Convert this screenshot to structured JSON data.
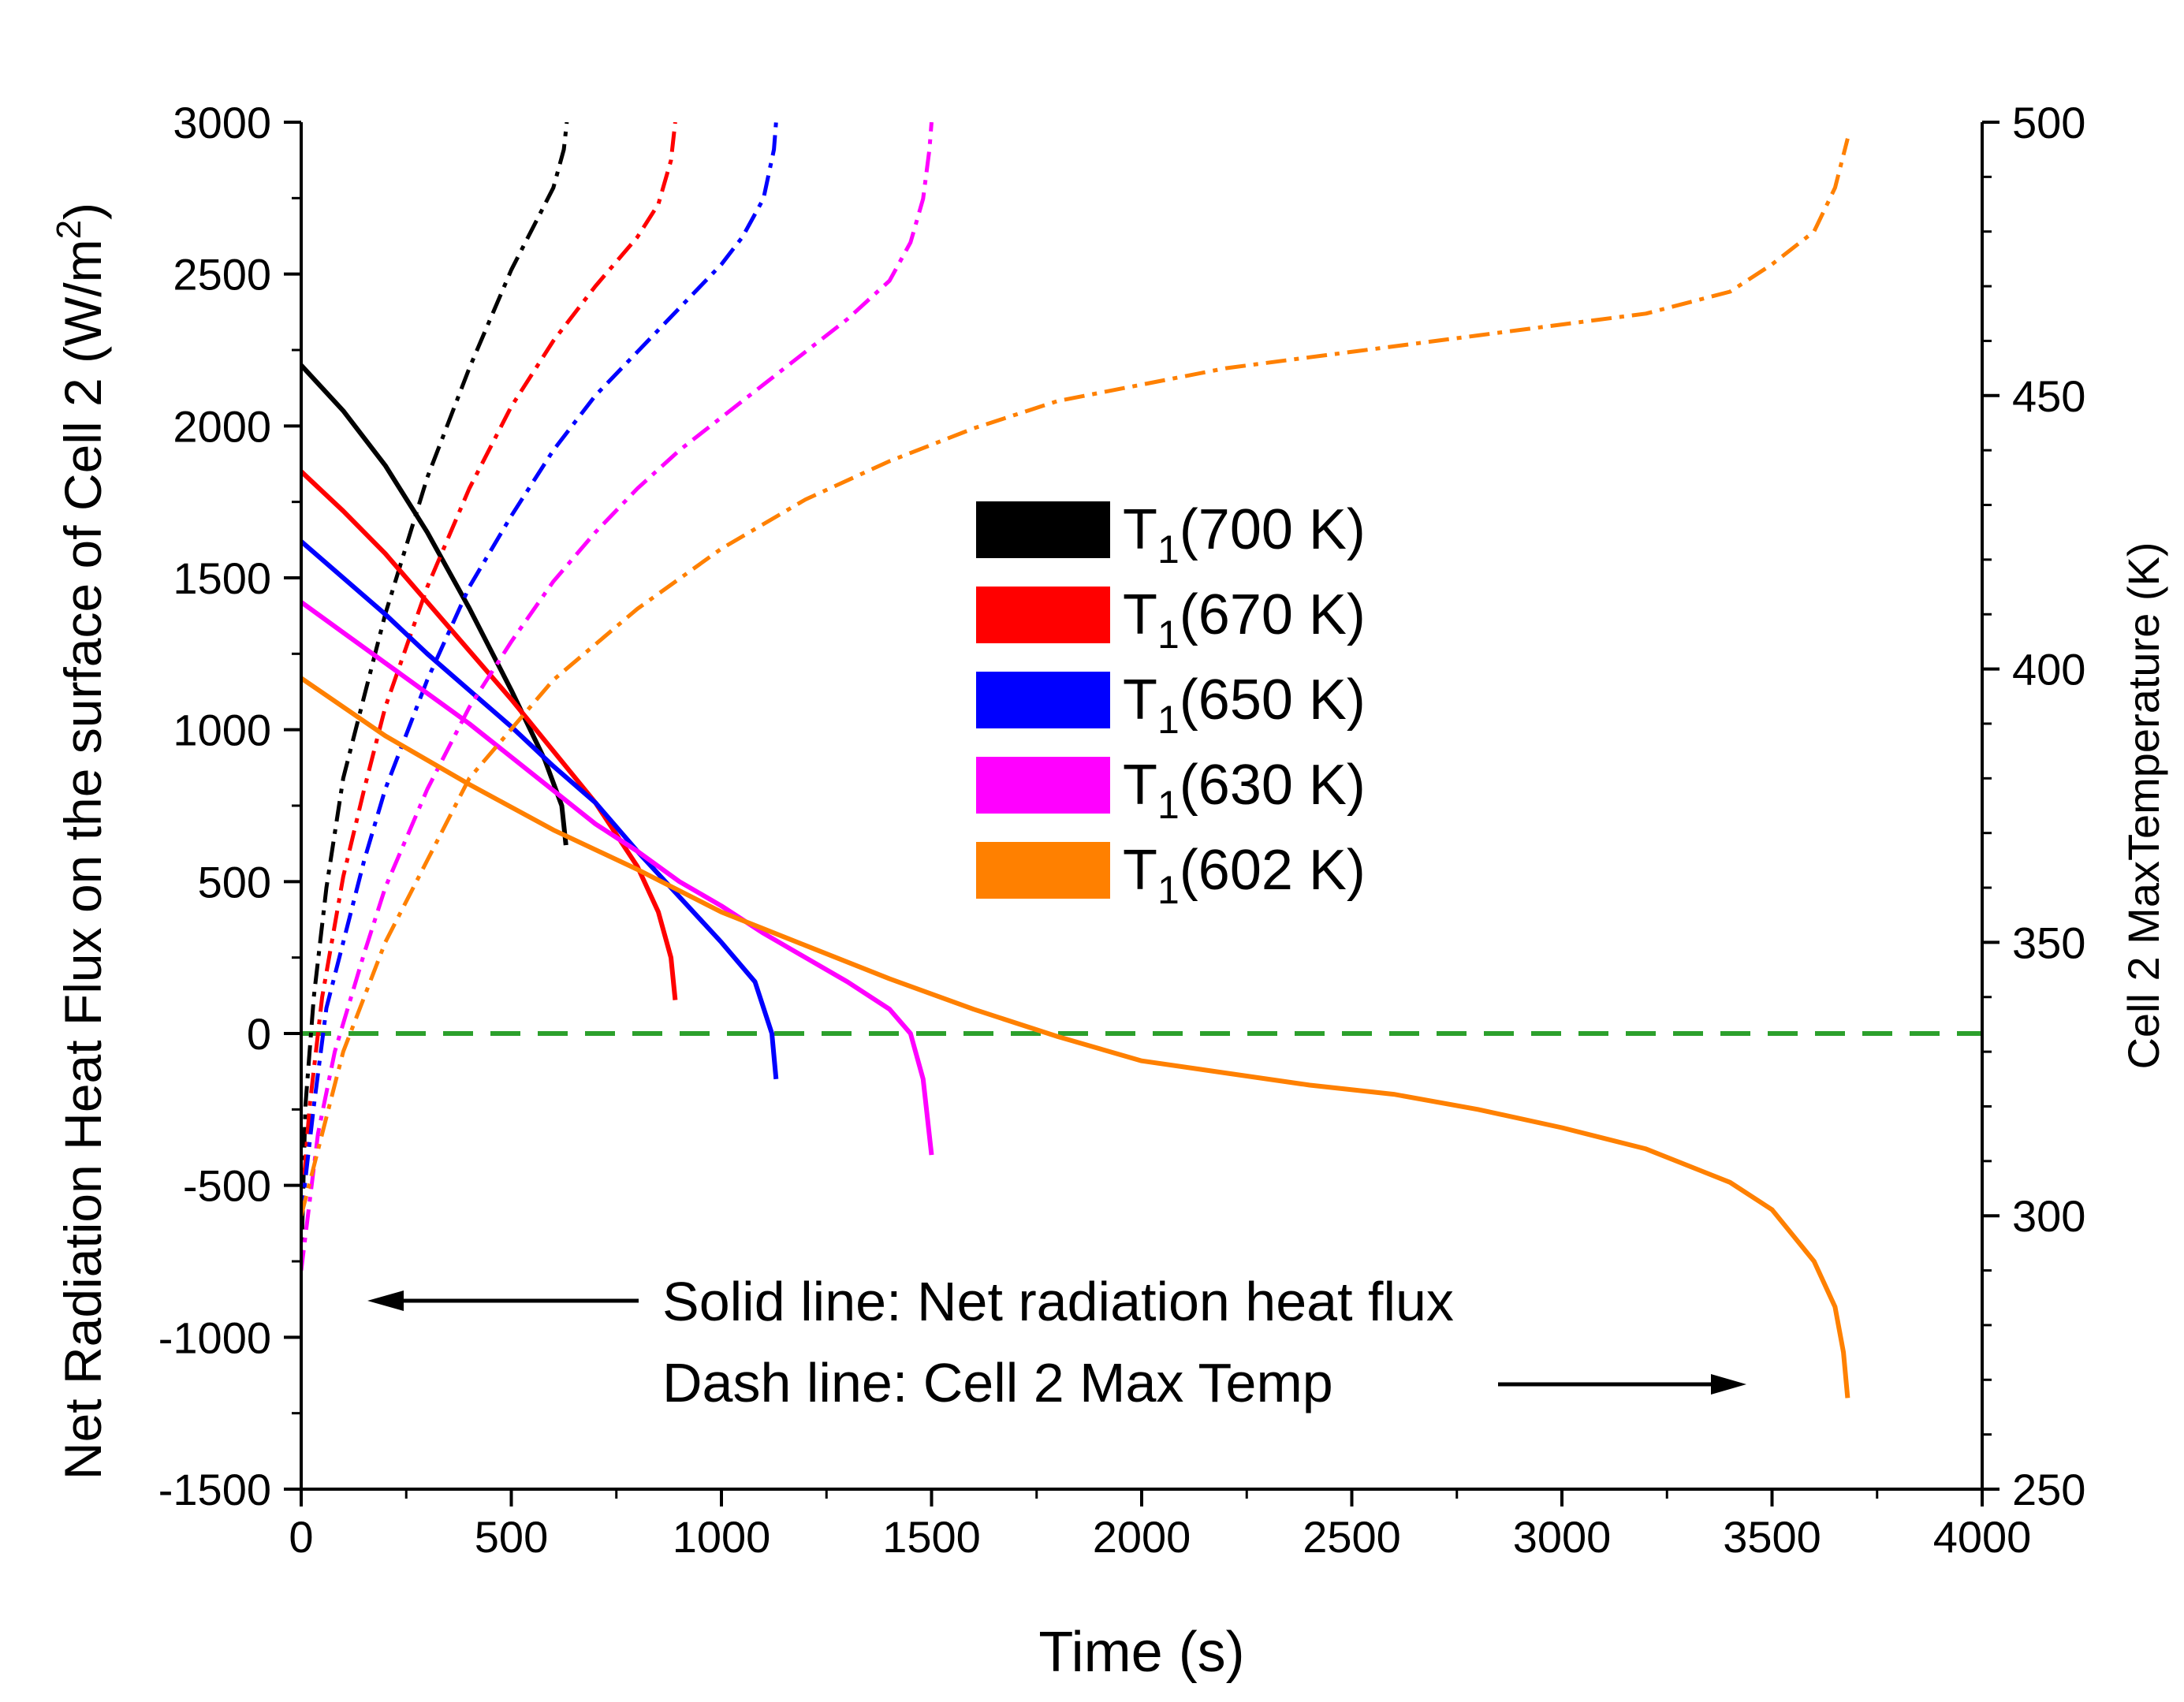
{
  "chart_data": {
    "type": "line",
    "xlabel": "Time (s)",
    "ylabel_left": "Net Radiation Heat Flux on the surface of Cell 2 (W/m²)",
    "ylabel_left_parts": {
      "main": "Net Radiation Heat Flux on the surface of Cell 2 (W/m",
      "sup": "2",
      "end": ")"
    },
    "ylabel_right": "Cell 2 MaxTemperature (K)",
    "xlim": [
      0,
      4000
    ],
    "ylim_left": [
      -1500,
      3000
    ],
    "ylim_right": [
      250,
      500
    ],
    "xticks": [
      "0",
      "500",
      "1000",
      "1500",
      "2000",
      "2500",
      "3000",
      "3500",
      "4000"
    ],
    "yticks_left": [
      "-1500",
      "-1000",
      "-500",
      "0",
      "500",
      "1000",
      "1500",
      "2000",
      "2500",
      "3000"
    ],
    "yticks_right": [
      "250",
      "300",
      "350",
      "400",
      "450",
      "500"
    ],
    "reference_line": {
      "axis": "left",
      "y": 0,
      "color": "#2ca02c",
      "style": "dashed"
    },
    "legend": {
      "placement": "center",
      "entries": [
        {
          "prefix": "T",
          "sub": "1",
          "label": "(700 K)",
          "color": "#000000"
        },
        {
          "prefix": "T",
          "sub": "1",
          "label": "(670 K)",
          "color": "#ff0000"
        },
        {
          "prefix": "T",
          "sub": "1",
          "label": "(650 K)",
          "color": "#0000ff"
        },
        {
          "prefix": "T",
          "sub": "1",
          "label": "(630 K)",
          "color": "#ff00ff"
        },
        {
          "prefix": "T",
          "sub": "1",
          "label": "(602 K)",
          "color": "#ff8000"
        }
      ]
    },
    "annotations": {
      "solid": "Solid line: Net radiation heat flux",
      "dash": "Dash line: Cell 2 Max Temp"
    },
    "series": [
      {
        "name": "T1(700 K)",
        "color": "#000000",
        "heat_flux": {
          "x": [
            0,
            100,
            200,
            300,
            400,
            500,
            580,
            620,
            630
          ],
          "y": [
            2200,
            2050,
            1870,
            1650,
            1400,
            1130,
            900,
            750,
            620
          ]
        },
        "max_temp": {
          "x": [
            0,
            10,
            30,
            60,
            100,
            150,
            200,
            300,
            400,
            500,
            600,
            625,
            632
          ],
          "y": [
            290,
            320,
            340,
            360,
            380,
            395,
            410,
            435,
            455,
            473,
            488,
            495,
            500
          ]
        }
      },
      {
        "name": "T1(670 K)",
        "color": "#ff0000",
        "heat_flux": {
          "x": [
            0,
            100,
            200,
            300,
            400,
            500,
            600,
            700,
            800,
            850,
            880,
            890
          ],
          "y": [
            1850,
            1720,
            1580,
            1420,
            1260,
            1100,
            930,
            760,
            550,
            400,
            250,
            110
          ]
        },
        "max_temp": {
          "x": [
            0,
            20,
            50,
            100,
            150,
            200,
            300,
            400,
            500,
            600,
            700,
            800,
            850,
            880,
            890
          ],
          "y": [
            300,
            320,
            340,
            362,
            378,
            393,
            415,
            433,
            448,
            460,
            470,
            479,
            485,
            493,
            500
          ]
        }
      },
      {
        "name": "T1(650 K)",
        "color": "#0000ff",
        "heat_flux": {
          "x": [
            0,
            100,
            200,
            300,
            400,
            500,
            600,
            700,
            800,
            900,
            1000,
            1080,
            1120,
            1130
          ],
          "y": [
            1620,
            1500,
            1380,
            1250,
            1130,
            1010,
            880,
            760,
            600,
            450,
            300,
            170,
            0,
            -150
          ]
        },
        "max_temp": {
          "x": [
            0,
            30,
            60,
            100,
            150,
            200,
            300,
            400,
            500,
            600,
            700,
            800,
            900,
            1000,
            1050,
            1100,
            1125,
            1130
          ],
          "y": [
            300,
            320,
            338,
            350,
            365,
            378,
            398,
            415,
            428,
            440,
            450,
            458,
            466,
            474,
            479,
            486,
            495,
            500
          ]
        }
      },
      {
        "name": "T1(630 K)",
        "color": "#ff00ff",
        "heat_flux": {
          "x": [
            0,
            100,
            200,
            300,
            400,
            500,
            600,
            700,
            800,
            900,
            1000,
            1100,
            1200,
            1300,
            1400,
            1450,
            1480,
            1500
          ],
          "y": [
            1420,
            1320,
            1220,
            1120,
            1020,
            910,
            800,
            690,
            600,
            500,
            420,
            330,
            250,
            170,
            80,
            0,
            -150,
            -400
          ]
        },
        "max_temp": {
          "x": [
            0,
            40,
            80,
            150,
            200,
            300,
            400,
            500,
            600,
            700,
            800,
            900,
            1000,
            1100,
            1200,
            1300,
            1400,
            1450,
            1480,
            1495,
            1500
          ],
          "y": [
            290,
            315,
            330,
            348,
            360,
            378,
            393,
            405,
            416,
            425,
            433,
            440,
            446,
            452,
            458,
            464,
            471,
            478,
            486,
            495,
            500
          ]
        }
      },
      {
        "name": "T1(602 K)",
        "color": "#ff8000",
        "heat_flux": {
          "x": [
            0,
            200,
            400,
            600,
            800,
            1000,
            1200,
            1400,
            1600,
            1800,
            2000,
            2200,
            2400,
            2600,
            2800,
            3000,
            3200,
            3400,
            3500,
            3600,
            3650,
            3670,
            3680
          ],
          "y": [
            1170,
            980,
            820,
            670,
            540,
            400,
            290,
            180,
            80,
            -10,
            -90,
            -130,
            -170,
            -200,
            -250,
            -310,
            -380,
            -490,
            -580,
            -750,
            -900,
            -1050,
            -1200
          ]
        },
        "max_temp": {
          "x": [
            0,
            50,
            100,
            200,
            300,
            400,
            600,
            800,
            1000,
            1200,
            1400,
            1600,
            1800,
            2000,
            2200,
            2400,
            2600,
            2800,
            3000,
            3200,
            3400,
            3500,
            3600,
            3650,
            3680
          ],
          "y": [
            300,
            315,
            330,
            350,
            365,
            380,
            398,
            411,
            422,
            431,
            438,
            444,
            449,
            452,
            455,
            457,
            459,
            461,
            463,
            465,
            469,
            474,
            480,
            488,
            497
          ]
        }
      }
    ]
  }
}
